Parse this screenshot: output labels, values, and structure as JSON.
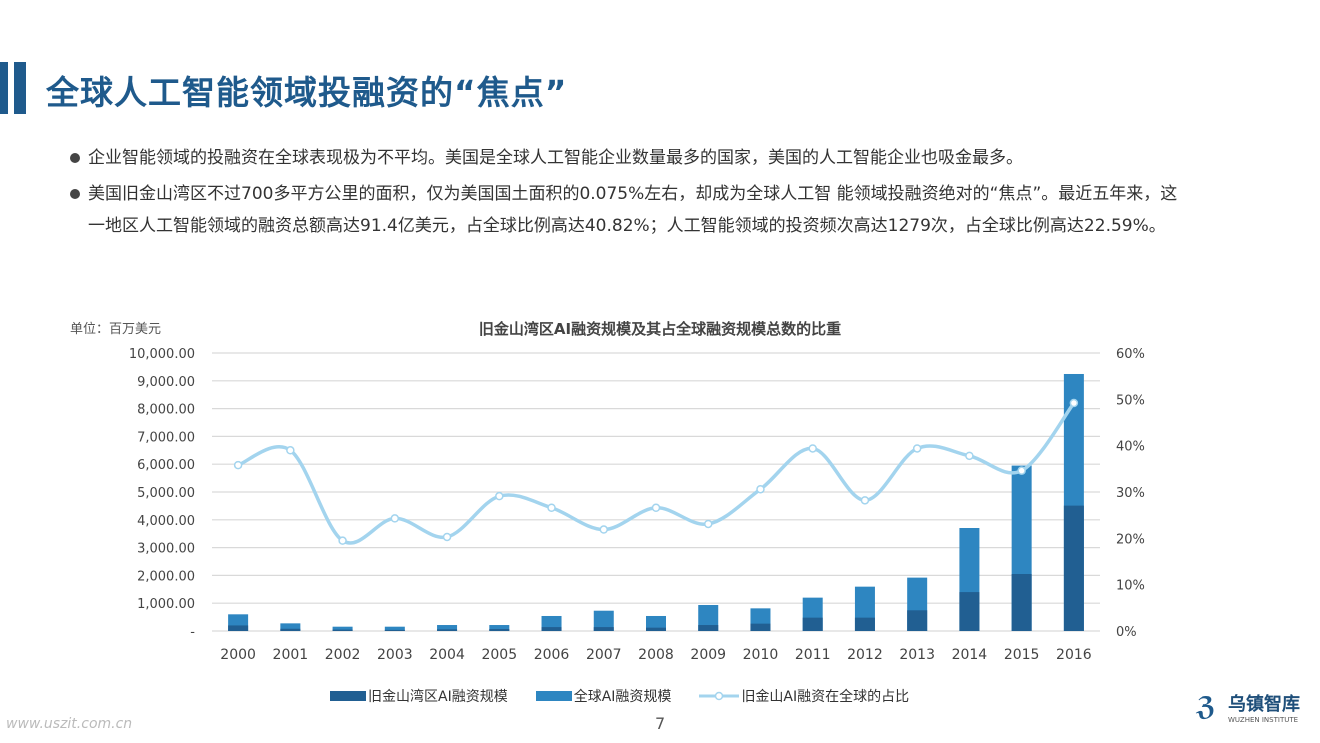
{
  "title": "全球人工智能领域投融资的“焦点”",
  "bullets": [
    "企业智能领域的投融资在全球表现极为不平均。美国是全球人工智能企业数量最多的国家，美国的人工智能企业也吸金最多。",
    "美国旧金山湾区不过700多平方公里的面积，仅为美国国土面积的0.075%左右，却成为全球人工智 能领域投融资绝对的“焦点”。最近五年来，这一地区人工智能领域的融资总额高达91.4亿美元，占全球比例高达40.82%；人工智能领域的投资频次高达1279次，占全球比例高达22.59%。"
  ],
  "page_number": "7",
  "watermark": "www.uszit.com.cn",
  "logo": {
    "name": "乌镇智库",
    "sub": "WUZHEN INSTITUTE"
  },
  "colors": {
    "accent": "#1f5a8c",
    "sf_bar": "#215f92",
    "global_bar": "#2e86c1",
    "share_line": "#a3d4ee"
  },
  "chart_data": {
    "type": "bar+line",
    "title": "旧金山湾区AI融资规模及其占全球融资规模总数的比重",
    "unit_label": "单位：百万美元",
    "categories": [
      "2000",
      "2001",
      "2002",
      "2003",
      "2004",
      "2005",
      "2006",
      "2007",
      "2008",
      "2009",
      "2010",
      "2011",
      "2012",
      "2013",
      "2014",
      "2015",
      "2016"
    ],
    "y_left": {
      "range": [
        0,
        10000
      ],
      "ticks": [
        "-",
        "1,000.00",
        "2,000.00",
        "3,000.00",
        "4,000.00",
        "5,000.00",
        "6,000.00",
        "7,000.00",
        "8,000.00",
        "9,000.00",
        "10,000.00"
      ]
    },
    "y_right": {
      "range": [
        0,
        60
      ],
      "ticks": [
        "0%",
        "10%",
        "20%",
        "30%",
        "40%",
        "50%",
        "60%"
      ]
    },
    "grid": true,
    "legend_position": "bottom",
    "series": [
      {
        "name": "旧金山湾区AI融资规模",
        "type": "bar",
        "values": [
          200,
          80,
          50,
          40,
          60,
          70,
          140,
          140,
          120,
          215,
          265,
          480,
          480,
          745,
          1400,
          2050,
          4510
        ]
      },
      {
        "name": "全球AI融资规模",
        "type": "bar",
        "values": [
          600,
          275,
          155,
          155,
          215,
          215,
          540,
          730,
          540,
          935,
          815,
          1200,
          1595,
          1920,
          3705,
          5950,
          9245
        ]
      },
      {
        "name": "旧金山AI融资在全球的占比",
        "type": "line",
        "axis": "right",
        "values": [
          35.8,
          39.0,
          19.5,
          24.3,
          20.3,
          29.1,
          26.6,
          21.9,
          26.6,
          23.1,
          30.6,
          39.4,
          28.2,
          39.4,
          37.8,
          34.6,
          49.2
        ]
      }
    ]
  }
}
